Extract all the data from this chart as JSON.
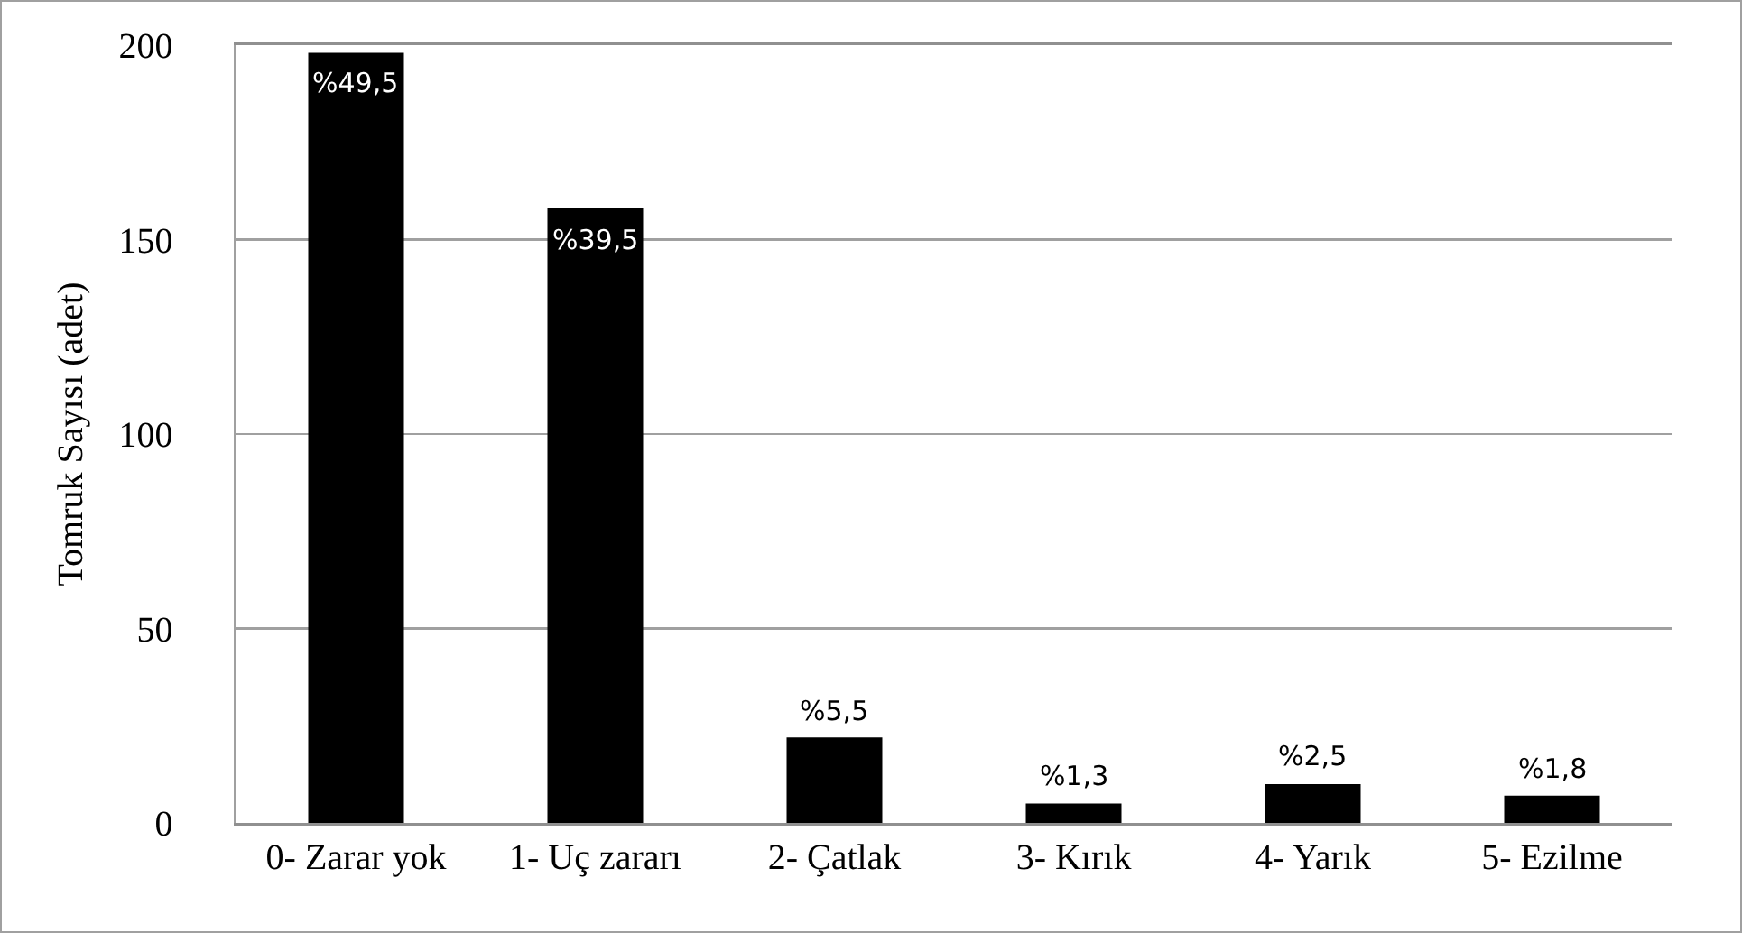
{
  "chart_data": {
    "type": "bar",
    "ylabel": "Tomruk Sayısı (adet)",
    "categories": [
      "0- Zarar yok",
      "1- Uç zararı",
      "2- Çatlak",
      "3- Kırık",
      "4- Yarık",
      "5- Ezilme"
    ],
    "values": [
      198,
      158,
      22,
      5,
      10,
      7
    ],
    "annotations": [
      {
        "text": "%49,5",
        "x": "0- Zarar yok",
        "y": 198
      },
      {
        "text": "%39,5",
        "x": "1- Uç zararı",
        "y": 158
      },
      {
        "text": "%5,5",
        "x": "2- Çatlak",
        "y": 22
      },
      {
        "text": "%1,3",
        "x": "3- Kırık",
        "y": 5
      },
      {
        "text": "%2,5",
        "x": "4- Yarık",
        "y": 10
      },
      {
        "text": "%1,8",
        "x": "5- Ezilme",
        "y": 7
      }
    ],
    "color": "#000000",
    "ylim": [
      0,
      200
    ],
    "yticks": [
      0,
      50,
      100,
      150,
      200
    ],
    "grid": "y",
    "legend": false
  }
}
